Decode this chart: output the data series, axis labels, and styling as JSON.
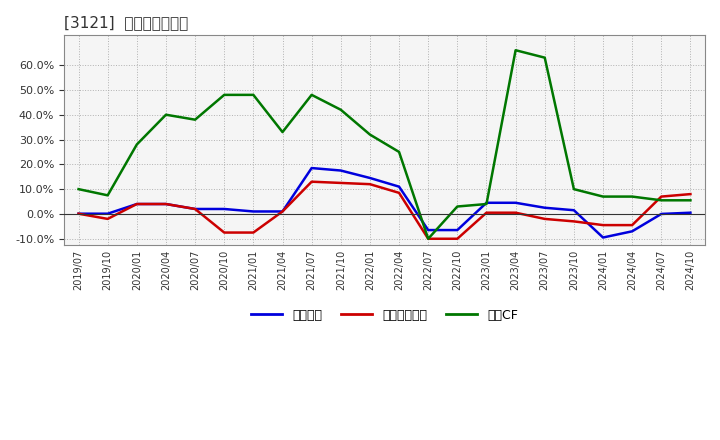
{
  "title": "[3121]  マージンの推移",
  "title_fontsize": 11,
  "legend_labels": [
    "経常利益",
    "当期経続利益",
    "営業CF"
  ],
  "legend_labels_raw": [
    "経常利益",
    "当期経続利益",
    "営業CF"
  ],
  "line_colors": [
    "#0000dd",
    "#cc0000",
    "#007700"
  ],
  "ylim": [
    -0.125,
    0.72
  ],
  "yticks": [
    -0.1,
    0.0,
    0.1,
    0.2,
    0.3,
    0.4,
    0.5,
    0.6
  ],
  "background_color": "#ffffff",
  "plot_bg_color": "#f5f5f5",
  "grid_color": "#aaaaaa",
  "dates": [
    "2019/07",
    "2019/10",
    "2020/01",
    "2020/04",
    "2020/07",
    "2020/10",
    "2021/01",
    "2021/04",
    "2021/07",
    "2021/10",
    "2022/01",
    "2022/04",
    "2022/07",
    "2022/10",
    "2023/01",
    "2023/04",
    "2023/07",
    "2023/10",
    "2024/01",
    "2024/04",
    "2024/07",
    "2024/10"
  ],
  "keijo": [
    0.001,
    0.001,
    0.04,
    0.04,
    0.02,
    0.02,
    0.01,
    0.01,
    0.185,
    0.175,
    0.145,
    0.11,
    -0.065,
    -0.065,
    0.045,
    0.045,
    0.025,
    0.015,
    -0.095,
    -0.07,
    0.0,
    0.005
  ],
  "touki": [
    0.001,
    -0.02,
    0.04,
    0.04,
    0.02,
    -0.075,
    -0.075,
    0.01,
    0.13,
    0.125,
    0.12,
    0.085,
    -0.1,
    -0.1,
    0.005,
    0.005,
    -0.02,
    -0.03,
    -0.045,
    -0.045,
    0.07,
    0.08
  ],
  "eigyo_cf": [
    0.1,
    0.075,
    0.28,
    0.4,
    0.38,
    0.48,
    0.48,
    0.33,
    0.48,
    0.42,
    0.32,
    0.25,
    -0.1,
    0.03,
    0.04,
    0.66,
    0.63,
    0.1,
    0.07,
    0.07,
    0.055,
    0.055
  ]
}
